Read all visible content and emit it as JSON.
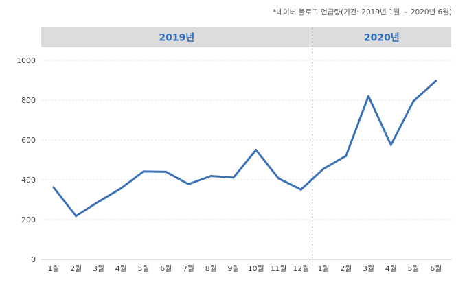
{
  "note": "*네이버 블로그 언급량(기간: 2019년 1월 ~ 2020년 6월)",
  "colors": {
    "line": "#3a72b5",
    "band": "#dcdcdc",
    "year_text": "#2f6fc0"
  },
  "chart_data": {
    "type": "line",
    "title": "",
    "xlabel": "",
    "ylabel": "",
    "ylim": [
      0,
      1000
    ],
    "yticks": [
      0,
      200,
      400,
      600,
      800,
      1000
    ],
    "grid": true,
    "year_bands": [
      {
        "label": "2019년",
        "from": 0,
        "to": 11
      },
      {
        "label": "2020년",
        "from": 12,
        "to": 17
      }
    ],
    "categories": [
      "1월",
      "2월",
      "3월",
      "4월",
      "5월",
      "6월",
      "7월",
      "8월",
      "9월",
      "10월",
      "11월",
      "12월",
      "1월",
      "2월",
      "3월",
      "4월",
      "5월",
      "6월"
    ],
    "series": [
      {
        "values": [
          362,
          218,
          290,
          357,
          442,
          440,
          378,
          419,
          411,
          550,
          407,
          351,
          455,
          520,
          820,
          575,
          795,
          897
        ]
      }
    ]
  }
}
